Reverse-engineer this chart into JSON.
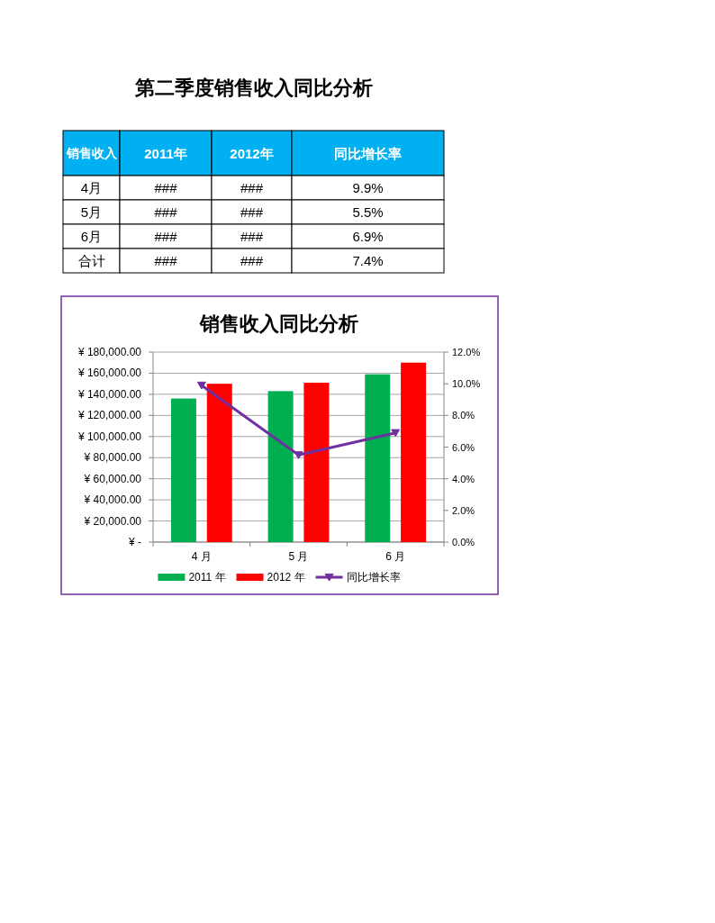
{
  "chart_data": [
    {
      "type": "other",
      "title": "第二季度销售收入同比分析",
      "categories": [
        "销售收入",
        "2011年",
        "2012年",
        "同比增长率"
      ],
      "y_categories": [
        "4月",
        "5月",
        "6月",
        "合计"
      ],
      "cell_labels": [
        [
          "###",
          "###",
          "9.9%"
        ],
        [
          "###",
          "###",
          "5.5%"
        ],
        [
          "###",
          "###",
          "6.9%"
        ],
        [
          "###",
          "###",
          "7.4%"
        ]
      ]
    },
    {
      "type": "bar",
      "title": "销售收入同比分析",
      "categories": [
        "4 月",
        "5 月",
        "6 月"
      ],
      "series": [
        {
          "name": "2011 年",
          "color": "#00b050",
          "values": [
            136000,
            143000,
            159000
          ]
        },
        {
          "name": "2012 年",
          "color": "#ff0000",
          "values": [
            150000,
            151000,
            170000
          ]
        },
        {
          "name": "同比增长率",
          "type": "line",
          "axis": "y2",
          "color": "#7030a0",
          "values": [
            9.9,
            5.5,
            6.9
          ]
        }
      ],
      "ylim": [
        0,
        180000
      ],
      "yticks": [
        {
          "value": 0,
          "label": "¥ -"
        },
        {
          "value": 20000,
          "label": "¥ 20,000.00"
        },
        {
          "value": 40000,
          "label": "¥ 40,000.00"
        },
        {
          "value": 60000,
          "label": "¥ 60,000.00"
        },
        {
          "value": 80000,
          "label": "¥ 80,000.00"
        },
        {
          "value": 100000,
          "label": "¥ 100,000.00"
        },
        {
          "value": 120000,
          "label": "¥ 120,000.00"
        },
        {
          "value": 140000,
          "label": "¥ 140,000.00"
        },
        {
          "value": 160000,
          "label": "¥ 160,000.00"
        },
        {
          "value": 180000,
          "label": "¥ 180,000.00"
        }
      ],
      "y2lim": [
        0,
        12
      ],
      "y2ticks": [
        {
          "value": 0,
          "label": "0.0%"
        },
        {
          "value": 2,
          "label": "2.0%"
        },
        {
          "value": 4,
          "label": "4.0%"
        },
        {
          "value": 6,
          "label": "6.0%"
        },
        {
          "value": 8,
          "label": "8.0%"
        },
        {
          "value": 10,
          "label": "10.0%"
        },
        {
          "value": 12,
          "label": "12.0%"
        }
      ],
      "grid": "y",
      "legend": "bottom",
      "marker": "triangle"
    }
  ]
}
